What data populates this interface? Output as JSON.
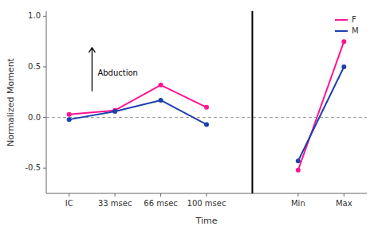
{
  "chart_data": {
    "type": "line",
    "categories": [
      "IC",
      "33 msec",
      "66 msec",
      "100 msec",
      null,
      "Min",
      "Max"
    ],
    "series": [
      {
        "name": "F",
        "color": "#FF1493",
        "marker": "circle",
        "values": [
          0.03,
          0.07,
          0.32,
          0.1,
          null,
          -0.52,
          0.75
        ]
      },
      {
        "name": "M",
        "color": "#1E40AF",
        "marker": "circle",
        "values": [
          -0.02,
          0.06,
          0.17,
          -0.07,
          null,
          -0.43,
          0.5
        ]
      }
    ],
    "x_label": "Time",
    "y_label": "Normalized Moment",
    "annotation": "Abduction",
    "hline": 0,
    "ylim": [
      -0.75,
      1.05
    ],
    "yticks": [
      -0.5,
      {
        "value": 0,
        "label": "0.0"
      },
      0.5,
      {
        "value": 1,
        "label": "1.0"
      }
    ],
    "grid": false,
    "legend": "upper right"
  }
}
